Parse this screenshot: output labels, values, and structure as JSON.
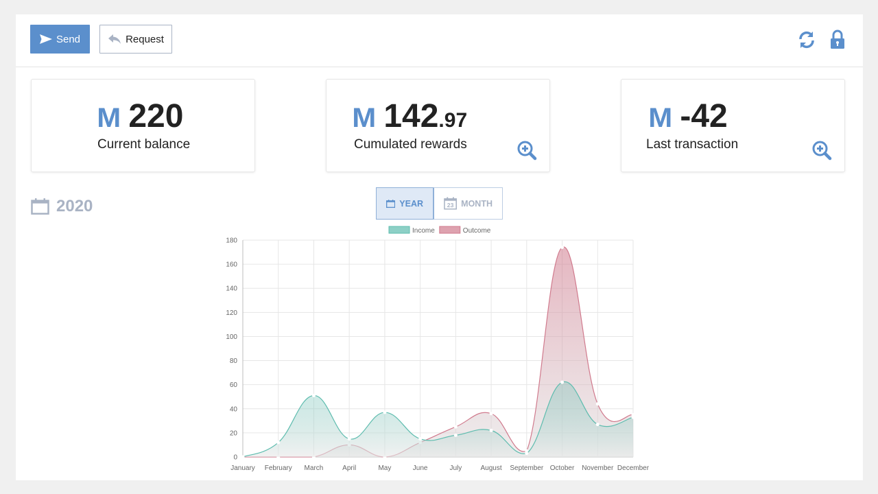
{
  "toolbar": {
    "send_label": "Send",
    "request_label": "Request",
    "icons": [
      "paper-plane-icon",
      "reply-icon",
      "refresh-icon",
      "lock-icon"
    ]
  },
  "colors": {
    "accent": "#5b8fcc",
    "income": "#5dbcae",
    "outcome": "#d07a8d",
    "muted": "#a9b3c4"
  },
  "cards": [
    {
      "currency": "M",
      "amount_int": "220",
      "amount_dec": "",
      "label": "Current balance",
      "zoomable": false
    },
    {
      "currency": "M",
      "amount_int": "142",
      "amount_dec": ".97",
      "label": "Cumulated rewards",
      "zoomable": true
    },
    {
      "currency": "M",
      "amount_int": "-42",
      "amount_dec": "",
      "label": "Last transaction",
      "zoomable": true
    }
  ],
  "period": {
    "year": "2020",
    "options": [
      "YEAR",
      "MONTH"
    ],
    "selected": "YEAR",
    "month_icon_day": "23"
  },
  "chart_data": {
    "type": "area",
    "x": [
      "January",
      "February",
      "March",
      "April",
      "May",
      "June",
      "July",
      "August",
      "September",
      "October",
      "November",
      "December"
    ],
    "ylim": [
      0,
      180
    ],
    "yticks": [
      0,
      20,
      40,
      60,
      80,
      100,
      120,
      140,
      160,
      180
    ],
    "legend_position": "top",
    "grid": true,
    "series": [
      {
        "name": "Income",
        "values": [
          0,
          12,
          51,
          15,
          37,
          15,
          18,
          22,
          3,
          62,
          27,
          33
        ]
      },
      {
        "name": "Outcome",
        "values": [
          0,
          0,
          0,
          10,
          0,
          12,
          25,
          36,
          5,
          174,
          44,
          35
        ]
      }
    ]
  }
}
